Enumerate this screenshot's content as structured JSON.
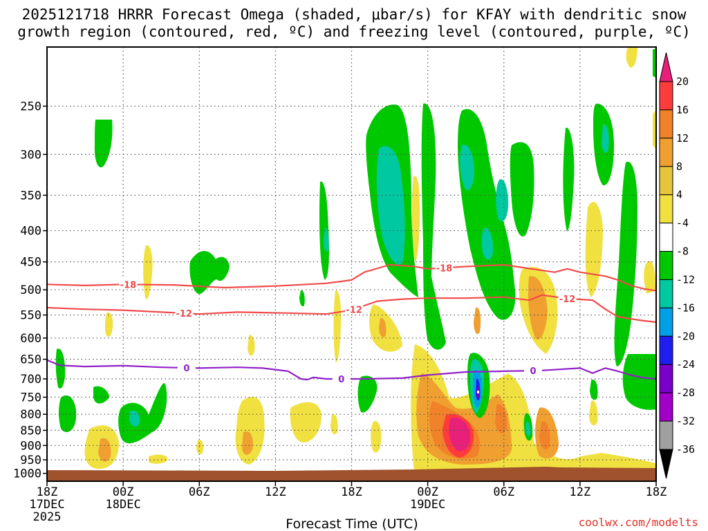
{
  "chart_data": {
    "type": "time-height contour",
    "title_line1": "2025121718 HRRR Forecast Omega (shaded, μbar/s) for KFAY with dendritic snow",
    "title_line2": "growth region (contoured, red, ºC) and freezing level (contoured, purple, ºC)",
    "xlabel": "Forecast Time (UTC)",
    "credit": "coolwx.com/modelts",
    "x_hours_range": [
      0,
      48
    ],
    "y_pressure_range_hPa": [
      200,
      1030
    ],
    "y_ticks": [
      250,
      300,
      350,
      400,
      450,
      500,
      550,
      600,
      650,
      700,
      750,
      800,
      850,
      900,
      950,
      1000
    ],
    "x_ticks": [
      {
        "hour": 0,
        "lines": [
          "18Z",
          "17DEC",
          "2025"
        ]
      },
      {
        "hour": 6,
        "lines": [
          "00Z",
          "18DEC"
        ]
      },
      {
        "hour": 12,
        "lines": [
          "06Z"
        ]
      },
      {
        "hour": 18,
        "lines": [
          "12Z"
        ]
      },
      {
        "hour": 24,
        "lines": [
          "18Z"
        ]
      },
      {
        "hour": 30,
        "lines": [
          "00Z",
          "19DEC"
        ]
      },
      {
        "hour": 36,
        "lines": [
          "06Z"
        ]
      },
      {
        "hour": 42,
        "lines": [
          "12Z"
        ]
      },
      {
        "hour": 48,
        "lines": [
          "18Z"
        ]
      }
    ],
    "colorbar_labels": [
      "20",
      "16",
      "12",
      "8",
      "4",
      "-4",
      "-8",
      "-12",
      "-16",
      "-20",
      "-24",
      "-28",
      "-32",
      "-36"
    ],
    "colorbar_colors": [
      "#e8207a",
      "#ff3c3c",
      "#f0822a",
      "#f0a030",
      "#e6c43c",
      "#f0e040",
      "#ffffff",
      "#00c800",
      "#00c8a0",
      "#00a0e6",
      "#1e1ef0",
      "#7800c8",
      "#a000c8",
      "#a0a0a0",
      "#000000"
    ],
    "contours": [
      {
        "label": "-18",
        "color": "#f04a4a",
        "label_hour": 6.4,
        "points": [
          [
            0,
            490
          ],
          [
            3,
            492
          ],
          [
            6,
            490
          ],
          [
            10,
            491
          ],
          [
            14,
            496
          ],
          [
            18,
            493
          ],
          [
            22,
            488
          ],
          [
            24,
            482
          ],
          [
            25,
            468
          ],
          [
            27,
            455
          ],
          [
            29,
            458
          ],
          [
            30,
            462
          ],
          [
            33,
            458
          ],
          [
            36,
            455
          ],
          [
            40,
            468
          ],
          [
            41,
            462
          ],
          [
            42,
            468
          ],
          [
            44,
            475
          ],
          [
            45,
            482
          ],
          [
            46,
            492
          ],
          [
            47,
            498
          ],
          [
            48,
            502
          ]
        ]
      },
      {
        "label": "-12",
        "color": "#f04a4a",
        "label_hour": 10.8,
        "points": [
          [
            0,
            535
          ],
          [
            3,
            538
          ],
          [
            6,
            540
          ],
          [
            9,
            544
          ],
          [
            12,
            548
          ],
          [
            15,
            544
          ],
          [
            19,
            546
          ],
          [
            22,
            548
          ],
          [
            24,
            540
          ],
          [
            26,
            522
          ],
          [
            28,
            518
          ],
          [
            30,
            516
          ],
          [
            33,
            516
          ],
          [
            36,
            514
          ],
          [
            38,
            520
          ],
          [
            39,
            510
          ],
          [
            41,
            517
          ],
          [
            43,
            520
          ],
          [
            44,
            538
          ],
          [
            45,
            554
          ],
          [
            47,
            562
          ],
          [
            48,
            565
          ]
        ]
      },
      {
        "label": "0",
        "color": "#9020c8",
        "label_hour": 11.0,
        "points": [
          [
            0,
            652
          ],
          [
            1,
            665
          ],
          [
            3,
            668
          ],
          [
            6,
            666
          ],
          [
            9,
            670
          ],
          [
            12,
            672
          ],
          [
            15,
            670
          ],
          [
            17,
            672
          ],
          [
            19,
            680
          ],
          [
            20,
            700
          ],
          [
            20.5,
            702
          ],
          [
            21,
            696
          ],
          [
            22,
            700
          ],
          [
            25,
            700
          ],
          [
            28,
            698
          ],
          [
            30,
            690
          ],
          [
            33,
            682
          ],
          [
            36,
            680
          ],
          [
            39,
            678
          ],
          [
            42,
            672
          ],
          [
            43,
            685
          ],
          [
            44,
            672
          ],
          [
            45,
            680
          ],
          [
            46,
            690
          ],
          [
            47,
            697
          ],
          [
            48,
            700
          ]
        ]
      }
    ],
    "contour_label_positions": [
      {
        "label": "-18",
        "hour": 6.4
      },
      {
        "label": "-18",
        "hour": 31.3
      },
      {
        "label": "-12",
        "hour": 10.8
      },
      {
        "label": "-12",
        "hour": 24.2
      },
      {
        "label": "-12",
        "hour": 41.0
      },
      {
        "label": "0",
        "hour": 11.0
      },
      {
        "label": "0",
        "hour": 23.2
      },
      {
        "label": "0",
        "hour": 38.3
      }
    ]
  }
}
